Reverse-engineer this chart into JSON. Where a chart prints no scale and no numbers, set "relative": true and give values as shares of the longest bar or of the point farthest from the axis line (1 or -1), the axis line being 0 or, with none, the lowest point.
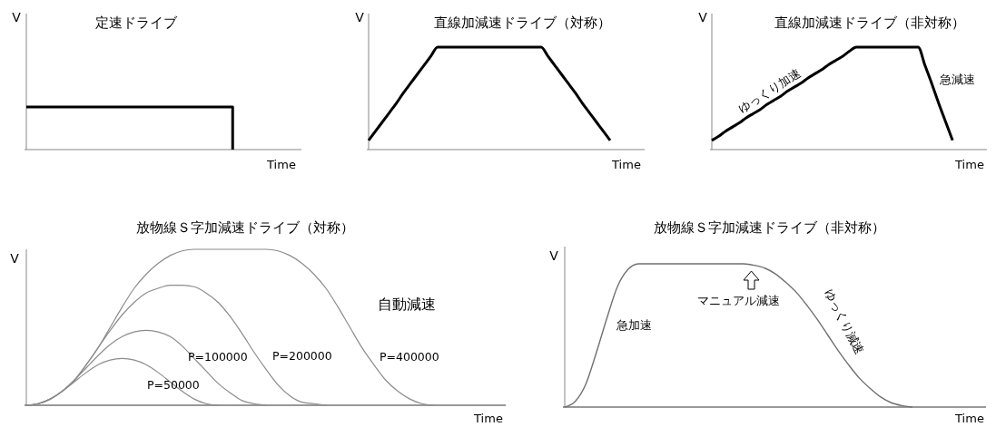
{
  "chart_data": [
    {
      "type": "step",
      "title": "定速ドライブ",
      "xlabel": "Time",
      "ylabel": "V",
      "relative": true,
      "categories": [
        null,
        null,
        null,
        null,
        null,
        null,
        null,
        null,
        null,
        null,
        null,
        null,
        null,
        null,
        null,
        null,
        null,
        null,
        null,
        null,
        null,
        null,
        null,
        null,
        null,
        null,
        null,
        null,
        null,
        null,
        null,
        null,
        null,
        null,
        null,
        null,
        null,
        null,
        null,
        null,
        null
      ],
      "series": [
        {
          "color": "#000000",
          "values": [
            1,
            1,
            1,
            1,
            1,
            1,
            1,
            1,
            1,
            1,
            1,
            1,
            1,
            1,
            1,
            1,
            1,
            1,
            1,
            1,
            1,
            1,
            1,
            1,
            1,
            1,
            1,
            1,
            1,
            1,
            0,
            null,
            null,
            null,
            null,
            null,
            null,
            null,
            null,
            null,
            null
          ]
        }
      ]
    },
    {
      "type": "line",
      "title": "直線加減速ドライブ（対称）",
      "xlabel": "Time",
      "ylabel": "V",
      "relative": true,
      "categories": [
        null,
        null,
        null,
        null,
        null,
        null,
        null,
        null,
        null,
        null,
        null,
        null,
        null,
        null,
        null,
        null,
        null,
        null,
        null,
        null,
        null,
        null,
        null,
        null,
        null,
        null,
        null,
        null,
        null,
        null,
        null,
        null,
        null,
        null,
        null,
        null,
        null,
        null,
        null,
        null,
        null
      ],
      "series": [
        {
          "color": "#000000",
          "values": [
            0.09,
            0.18,
            0.27,
            0.36,
            0.45,
            0.55,
            0.64,
            0.73,
            0.82,
            0.91,
            1,
            1,
            1,
            1,
            1,
            1,
            1,
            1,
            1,
            1,
            1,
            1,
            1,
            1,
            1,
            1,
            0.91,
            0.82,
            0.73,
            0.64,
            0.55,
            0.45,
            0.36,
            0.27,
            0.18,
            0.09,
            null,
            null,
            null,
            null,
            null
          ]
        }
      ]
    },
    {
      "type": "line",
      "title": "直線加減速ドライブ（非対称）",
      "xlabel": "Time",
      "ylabel": "V",
      "relative": true,
      "annotations": [
        "ゆっくり加速",
        "急減速"
      ],
      "categories": [
        null,
        null,
        null,
        null,
        null,
        null,
        null,
        null,
        null,
        null,
        null,
        null,
        null,
        null,
        null,
        null,
        null,
        null,
        null,
        null,
        null,
        null,
        null,
        null,
        null,
        null,
        null,
        null,
        null,
        null,
        null,
        null,
        null,
        null,
        null,
        null,
        null,
        null,
        null,
        null,
        null
      ],
      "series": [
        {
          "color": "#000000",
          "values": [
            0.09,
            0.13,
            0.18,
            0.22,
            0.26,
            0.31,
            0.35,
            0.39,
            0.44,
            0.48,
            0.52,
            0.57,
            0.61,
            0.65,
            0.7,
            0.74,
            0.78,
            0.83,
            0.87,
            0.91,
            0.96,
            1,
            1,
            1,
            1,
            1,
            1,
            1,
            1,
            1,
            1,
            0.82,
            0.64,
            0.45,
            0.27,
            0.09,
            null,
            null,
            null,
            null,
            null
          ]
        }
      ]
    },
    {
      "type": "line",
      "title": "放物線Ｓ字加減速ドライブ（対称）",
      "xlabel": "Time",
      "ylabel": "V",
      "relative": true,
      "annotations": [
        "自動減速"
      ],
      "categories": [
        null,
        null,
        null,
        null,
        null,
        null,
        null,
        null,
        null,
        null,
        null,
        null,
        null,
        null,
        null,
        null,
        null,
        null,
        null,
        null,
        null,
        null,
        null,
        null,
        null,
        null,
        null,
        null,
        null,
        null,
        null,
        null,
        null,
        null,
        null,
        null,
        null,
        null,
        null,
        null,
        null
      ],
      "series": [
        {
          "name": "P=50000",
          "color": "#8c8c8c",
          "values": [
            0,
            0.01,
            0.04,
            0.09,
            0.15,
            0.21,
            0.26,
            0.29,
            0.3,
            0.29,
            0.26,
            0.21,
            0.15,
            0.09,
            0.04,
            0.01,
            0,
            null,
            null,
            null,
            null,
            null,
            null,
            null,
            null,
            null,
            null,
            null,
            null,
            null,
            null,
            null,
            null,
            null,
            null,
            null,
            null,
            null,
            null,
            null,
            null
          ]
        },
        {
          "name": "P=100000",
          "color": "#8c8c8c",
          "values": [
            0,
            0.01,
            0.04,
            0.09,
            0.16,
            0.24,
            0.32,
            0.39,
            0.44,
            0.47,
            0.48,
            0.47,
            0.44,
            0.38,
            0.3,
            0.22,
            0.14,
            0.08,
            0.03,
            0.01,
            0,
            null,
            null,
            null,
            null,
            null,
            null,
            null,
            null,
            null,
            null,
            null,
            null,
            null,
            null,
            null,
            null,
            null,
            null,
            null,
            null
          ]
        },
        {
          "name": "P=200000",
          "color": "#8c8c8c",
          "values": [
            0,
            0.01,
            0.04,
            0.09,
            0.16,
            0.26,
            0.37,
            0.48,
            0.58,
            0.66,
            0.72,
            0.75,
            0.77,
            0.77,
            0.76,
            0.72,
            0.66,
            0.57,
            0.46,
            0.34,
            0.23,
            0.13,
            0.06,
            0.02,
            0.01,
            0,
            null,
            null,
            null,
            null,
            null,
            null,
            null,
            null,
            null,
            null,
            null,
            null,
            null,
            null,
            null
          ]
        },
        {
          "name": "P=400000",
          "color": "#8c8c8c",
          "values": [
            0,
            0.01,
            0.04,
            0.09,
            0.16,
            0.26,
            0.37,
            0.5,
            0.63,
            0.75,
            0.84,
            0.91,
            0.96,
            0.99,
            1,
            1,
            1,
            1,
            1,
            1,
            1,
            0.99,
            0.96,
            0.91,
            0.84,
            0.75,
            0.63,
            0.5,
            0.37,
            0.26,
            0.16,
            0.09,
            0.04,
            0.01,
            0,
            null,
            null,
            null,
            null,
            null,
            null
          ]
        }
      ]
    },
    {
      "type": "line",
      "title": "放物線Ｓ字加減速ドライブ（非対称）",
      "xlabel": "Time",
      "ylabel": "V",
      "relative": true,
      "annotations": [
        "急加速",
        "マニュアル減速",
        "ゆっくり減速"
      ],
      "categories": [
        null,
        null,
        null,
        null,
        null,
        null,
        null,
        null,
        null,
        null,
        null,
        null,
        null,
        null,
        null,
        null,
        null,
        null,
        null,
        null,
        null,
        null,
        null,
        null,
        null,
        null,
        null,
        null,
        null,
        null,
        null,
        null,
        null,
        null,
        null,
        null,
        null,
        null,
        null,
        null,
        null
      ],
      "series": [
        {
          "color": "#707070",
          "values": [
            0,
            0.04,
            0.16,
            0.38,
            0.62,
            0.84,
            0.96,
            1,
            1,
            1,
            1,
            1,
            1,
            1,
            1,
            1,
            1,
            1,
            0.99,
            0.97,
            0.93,
            0.87,
            0.8,
            0.71,
            0.61,
            0.5,
            0.39,
            0.29,
            0.2,
            0.13,
            0.07,
            0.03,
            0.01,
            0,
            null,
            null,
            null,
            null,
            null,
            null,
            null
          ]
        }
      ]
    }
  ]
}
